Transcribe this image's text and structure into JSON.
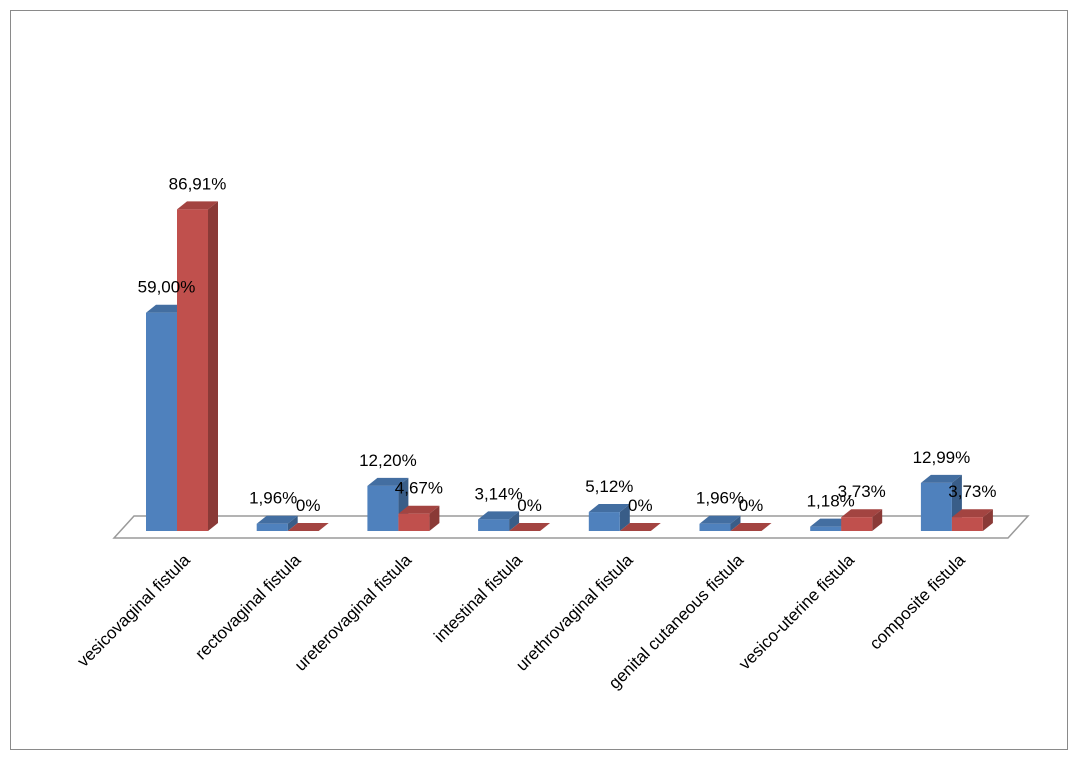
{
  "chart_data": {
    "type": "bar",
    "style": "3d-clustered-column",
    "categories": [
      "vesicovaginal fistula",
      "rectovaginal fistula",
      "ureterovaginal fistula",
      "intestinal fistula",
      "urethrovaginal fistula",
      "genital cutaneous fistula",
      "vesico-uterine fistula",
      "composite fistula"
    ],
    "series": [
      {
        "color": "#4f81bd",
        "values": [
          59.0,
          1.96,
          12.2,
          3.14,
          5.12,
          1.96,
          1.18,
          12.99
        ],
        "labels": [
          "59,00%",
          "1,96%",
          "12,20%",
          "3,14%",
          "5,12%",
          "1,96%",
          "1,18%",
          "12,99%"
        ]
      },
      {
        "color": "#c0504d",
        "values": [
          86.91,
          0,
          4.67,
          0,
          0,
          0,
          3.73,
          3.73
        ],
        "labels": [
          "86,91%",
          "0%",
          "4,67%",
          "0%",
          "0%",
          "0%",
          "3,73%",
          "3,73%"
        ]
      }
    ],
    "ylim": [
      0,
      100
    ],
    "grid": false,
    "legend": "none"
  }
}
